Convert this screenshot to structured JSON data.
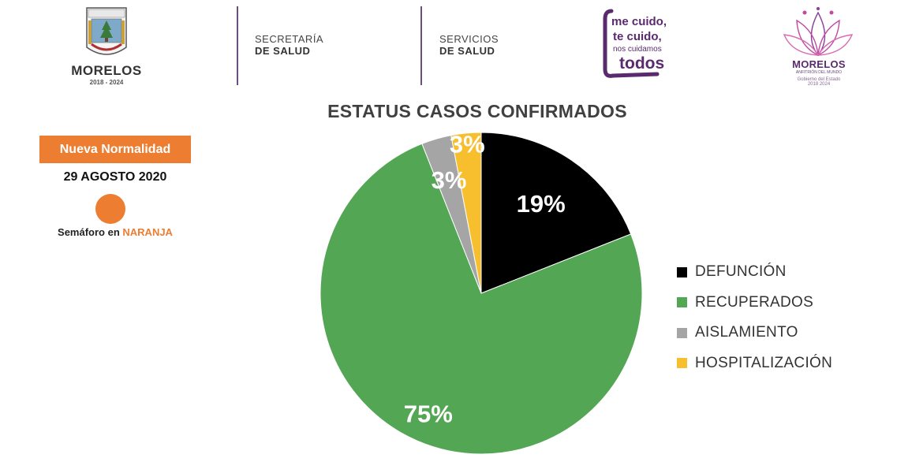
{
  "header": {
    "logo_left": {
      "title": "MORELOS",
      "years": "2018 - 2024"
    },
    "dept1": {
      "line1": "SECRETARÍA",
      "line2": "DE SALUD"
    },
    "dept2": {
      "line1": "SERVICIOS",
      "line2": "DE SALUD"
    },
    "slogan": {
      "line1": "me cuido,",
      "line2": "te cuido,",
      "line3": "nos cuidamos",
      "line4": "todos"
    },
    "logo_right": {
      "title": "MORELOS",
      "subtitle": "ANFITRIÓN DEL MUNDO",
      "gov": "Gobierno del Estado",
      "years": "2018 2024"
    }
  },
  "left_panel": {
    "badge": "Nueva Normalidad",
    "date": "29 AGOSTO 2020",
    "semaforo_prefix": "Semáforo en ",
    "semaforo_color": "NARANJA",
    "status_color": "#ed7d31"
  },
  "chart_data": {
    "type": "pie",
    "title": "ESTATUS CASOS CONFIRMADOS",
    "legend_position": "right",
    "slices": [
      {
        "name": "DEFUNCIÓN",
        "value": 19,
        "label": "19%",
        "color": "#000000"
      },
      {
        "name": "RECUPERADOS",
        "value": 75,
        "label": "75%",
        "color": "#53a653"
      },
      {
        "name": "AISLAMIENTO",
        "value": 3,
        "label": "3%",
        "color": "#a5a5a5"
      },
      {
        "name": "HOSPITALIZACIÓN",
        "value": 3,
        "label": "3%",
        "color": "#f7be2e"
      }
    ]
  }
}
